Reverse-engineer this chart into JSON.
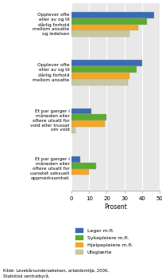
{
  "categories": [
    "Opplever ofte\neller av og til\ndårlig forhold\nmellom ansatte\nog ledelsen",
    "Opplever ofte\neller av og til\ndårlig forhold\nmellom ansatte",
    "Et par ganger i\nmåneden eller\noftere utsatt for\nvold eller trussel\nom vold",
    "Et par ganger i\nmåneden eller\noftere utsatt for\nuansket seksuell\noppmerksomhet"
  ],
  "series": [
    {
      "label": "Leger m.fl.",
      "color": "#3B6BB5",
      "values": [
        47,
        40,
        11,
        5
      ]
    },
    {
      "label": "Sykepleiere m.fl.",
      "color": "#5AAB2E",
      "values": [
        43,
        37,
        20,
        14
      ]
    },
    {
      "label": "Hjelpepleiere m.fl.",
      "color": "#F5A623",
      "values": [
        38,
        33,
        19,
        10
      ]
    },
    {
      "label": "Ufaglærte",
      "color": "#C8C8A0",
      "values": [
        33,
        32,
        2,
        -1
      ]
    }
  ],
  "xlim": [
    0,
    50
  ],
  "xticks": [
    0,
    10,
    20,
    30,
    40,
    50
  ],
  "xlabel": "Prosent",
  "source": "Kilde: Levekårsundersøkelsen, arbeidsmiljø, 2006,\nStatistisk sentralbyrå.",
  "bar_height": 0.13,
  "background_color": "#E8E8E8"
}
